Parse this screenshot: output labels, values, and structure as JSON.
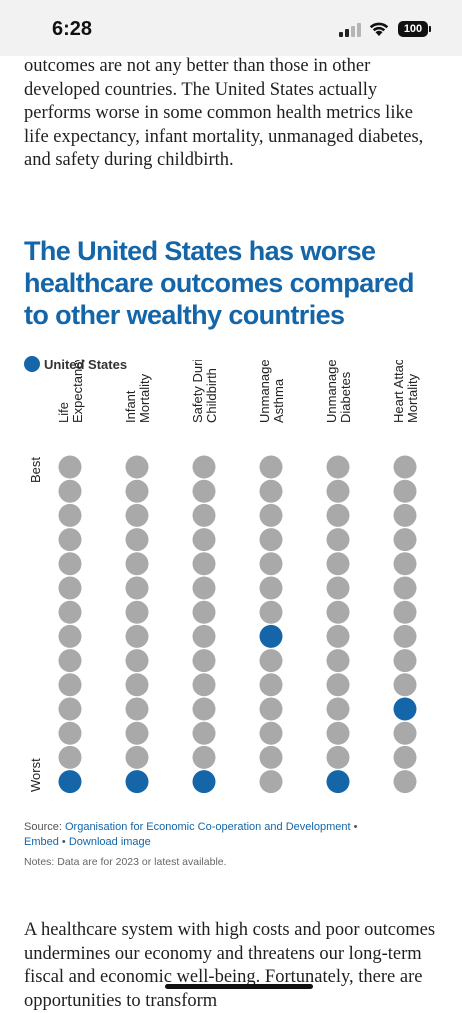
{
  "status_bar": {
    "time": "6:28",
    "battery": "100"
  },
  "article": {
    "intro_text": "outcomes are not any better than those in other developed countries. The United States actually performs worse in some common health metrics like life expectancy, infant mortality, unmanaged diabetes, and safety during childbirth.",
    "after_text": "A healthcare system with high costs and poor outcomes undermines our economy and threatens our long-term fiscal and economic well-being. Fortunately, there are opportunities to transform"
  },
  "chart": {
    "title": "The United States has worse healthcare outcomes compared to other wealthy countries",
    "legend_label": "United States",
    "colors": {
      "highlight": "#1466a8",
      "other": "#a9a9a9",
      "title": "#1466a8"
    },
    "source_prefix": "Source:",
    "source_link": "Organisation for Economic Co-operation and Development",
    "embed_link": "Embed",
    "download_link": "Download image",
    "notes": "Notes: Data are for 2023 or latest available."
  },
  "chart_data": {
    "type": "dot-rank",
    "title": "The United States has worse healthcare outcomes compared to other wealthy countries",
    "ylabel_top": "Best",
    "ylabel_bottom": "Worst",
    "ranks_per_metric": 14,
    "categories": [
      [
        "Life",
        "Expectancy"
      ],
      [
        "Infant",
        "Mortality"
      ],
      [
        "Safety During",
        "Childbirth"
      ],
      [
        "Unmanaged",
        "Asthma"
      ],
      [
        "Unmanaged",
        "Diabetes"
      ],
      [
        "Heart Attack",
        "Mortality"
      ]
    ],
    "series": [
      {
        "name": "United States",
        "values": [
          14,
          14,
          14,
          8,
          14,
          11
        ]
      }
    ]
  }
}
